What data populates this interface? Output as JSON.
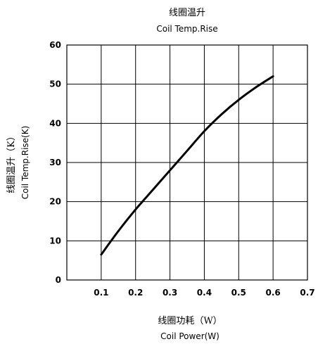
{
  "chart_data": {
    "type": "line",
    "title": "线圈温升",
    "title_en": "Coil Temp.Rise",
    "xlabel": "线圈功耗（W）",
    "xlabel_en": "Coil Power(W)",
    "ylabel": "线圈温升（K）",
    "ylabel_en": "Coil Temp.Rise(K)",
    "xlim": [
      0,
      0.7
    ],
    "ylim": [
      0,
      60
    ],
    "x_ticks": [
      "0.1",
      "0.2",
      "0.3",
      "0.4",
      "0.5",
      "0.6",
      "0.7"
    ],
    "y_ticks": [
      "0",
      "10",
      "20",
      "30",
      "40",
      "50",
      "60"
    ],
    "grid": true,
    "series": [
      {
        "x": [
          0.1,
          0.15,
          0.2,
          0.25,
          0.3,
          0.35,
          0.4,
          0.45,
          0.5,
          0.55,
          0.6
        ],
        "y": [
          6.5,
          12.5,
          18,
          23,
          28,
          33,
          38,
          42.3,
          46,
          49.2,
          52
        ]
      }
    ]
  }
}
